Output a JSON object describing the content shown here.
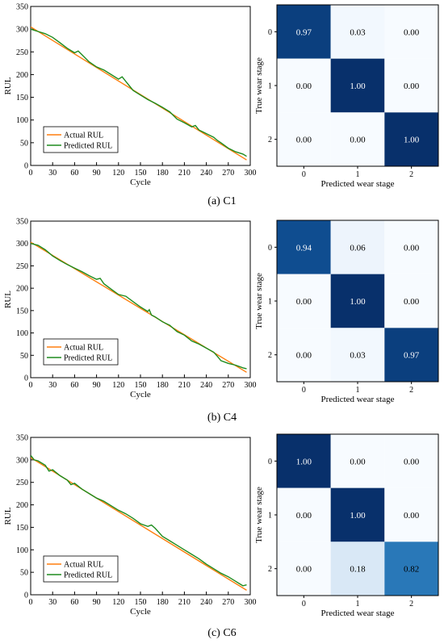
{
  "panels": [
    {
      "caption_letter": "(a)",
      "caption_text": " C1",
      "line": {
        "xlabel": "Cycle",
        "ylabel": "RUL",
        "xlim": [
          0,
          300
        ],
        "ylim": [
          0,
          350
        ],
        "xticks": [
          0,
          30,
          60,
          90,
          120,
          150,
          180,
          210,
          240,
          270,
          300
        ],
        "yticks": [
          0,
          50,
          100,
          150,
          200,
          250,
          300,
          350
        ],
        "legend": [
          "Actual RUL",
          "Predicted RUL"
        ]
      },
      "cm": {
        "xlabel": "Predicted wear stage",
        "ylabel": "True  wear stage",
        "classes": [
          "0",
          "1",
          "2"
        ],
        "matrix": [
          [
            "0.97",
            "0.03",
            "0.00"
          ],
          [
            "0.00",
            "1.00",
            "0.00"
          ],
          [
            "0.00",
            "0.00",
            "1.00"
          ]
        ]
      }
    },
    {
      "caption_letter": "(b)",
      "caption_text": " C4",
      "line": {
        "xlabel": "Cycle",
        "ylabel": "RUL",
        "xlim": [
          0,
          300
        ],
        "ylim": [
          0,
          350
        ],
        "xticks": [
          0,
          30,
          60,
          90,
          120,
          150,
          180,
          210,
          240,
          270,
          300
        ],
        "yticks": [
          0,
          50,
          100,
          150,
          200,
          250,
          300,
          350
        ],
        "legend": [
          "Actual RUL",
          "Predicted RUL"
        ]
      },
      "cm": {
        "xlabel": "Predicted wear stage",
        "ylabel": "True  wear stage",
        "classes": [
          "0",
          "1",
          "2"
        ],
        "matrix": [
          [
            "0.94",
            "0.06",
            "0.00"
          ],
          [
            "0.00",
            "1.00",
            "0.00"
          ],
          [
            "0.00",
            "0.03",
            "0.97"
          ]
        ]
      }
    },
    {
      "caption_letter": "(c)",
      "caption_text": " C6",
      "line": {
        "xlabel": "Cycle",
        "ylabel": "RUL",
        "xlim": [
          0,
          300
        ],
        "ylim": [
          0,
          350
        ],
        "xticks": [
          0,
          30,
          60,
          90,
          120,
          150,
          180,
          210,
          240,
          270,
          300
        ],
        "yticks": [
          0,
          50,
          100,
          150,
          200,
          250,
          300,
          350
        ],
        "legend": [
          "Actual RUL",
          "Predicted RUL"
        ]
      },
      "cm": {
        "xlabel": "Predicted wear stage",
        "ylabel": "True  wear stage",
        "classes": [
          "0",
          "1",
          "2"
        ],
        "matrix": [
          [
            "1.00",
            "0.00",
            "0.00"
          ],
          [
            "0.00",
            "1.00",
            "0.00"
          ],
          [
            "0.00",
            "0.18",
            "0.82"
          ]
        ]
      }
    }
  ],
  "colors": {
    "actual": "#ff7f0e",
    "predicted": "#1e8c1e",
    "cm_low": "#f7fbff",
    "cm_high": "#08306b"
  },
  "chart_data": [
    {
      "type": "line",
      "title": "",
      "xlabel": "Cycle",
      "ylabel": "RUL",
      "xlim": [
        0,
        300
      ],
      "ylim": [
        0,
        350
      ],
      "grid": false,
      "legend_position": "lower-left",
      "series": [
        {
          "name": "Actual RUL",
          "x": [
            0,
            295
          ],
          "y": [
            305,
            12
          ]
        },
        {
          "name": "Predicted RUL",
          "x": [
            0,
            10,
            20,
            30,
            40,
            50,
            60,
            65,
            70,
            80,
            90,
            100,
            110,
            120,
            125,
            130,
            135,
            140,
            150,
            160,
            170,
            180,
            190,
            200,
            210,
            220,
            225,
            230,
            240,
            250,
            255,
            260,
            270,
            280,
            290,
            295
          ],
          "y": [
            300,
            295,
            290,
            282,
            270,
            258,
            248,
            252,
            244,
            228,
            217,
            210,
            200,
            190,
            195,
            185,
            175,
            165,
            155,
            145,
            137,
            128,
            118,
            102,
            94,
            85,
            88,
            78,
            70,
            62,
            55,
            50,
            38,
            30,
            25,
            20
          ]
        }
      ]
    },
    {
      "type": "heatmap",
      "title": "",
      "xlabel": "Predicted wear stage",
      "ylabel": "True  wear stage",
      "x": [
        "0",
        "1",
        "2"
      ],
      "y": [
        "0",
        "1",
        "2"
      ],
      "values": [
        [
          0.97,
          0.03,
          0.0
        ],
        [
          0.0,
          1.0,
          0.0
        ],
        [
          0.0,
          0.0,
          1.0
        ]
      ]
    },
    {
      "type": "line",
      "title": "",
      "xlabel": "Cycle",
      "ylabel": "RUL",
      "xlim": [
        0,
        300
      ],
      "ylim": [
        0,
        350
      ],
      "grid": false,
      "legend_position": "lower-left",
      "series": [
        {
          "name": "Actual RUL",
          "x": [
            0,
            295
          ],
          "y": [
            303,
            12
          ]
        },
        {
          "name": "Predicted RUL",
          "x": [
            0,
            10,
            20,
            30,
            40,
            50,
            60,
            70,
            80,
            90,
            95,
            100,
            110,
            120,
            130,
            140,
            150,
            160,
            162,
            165,
            170,
            180,
            190,
            200,
            210,
            220,
            230,
            240,
            250,
            255,
            260,
            270,
            280,
            290,
            295
          ],
          "y": [
            300,
            296,
            286,
            272,
            262,
            253,
            245,
            237,
            228,
            220,
            222,
            210,
            198,
            186,
            182,
            170,
            158,
            148,
            152,
            140,
            136,
            125,
            117,
            103,
            95,
            82,
            75,
            66,
            57,
            48,
            38,
            32,
            28,
            22,
            20
          ]
        }
      ]
    },
    {
      "type": "heatmap",
      "title": "",
      "xlabel": "Predicted wear stage",
      "ylabel": "True  wear stage",
      "x": [
        "0",
        "1",
        "2"
      ],
      "y": [
        "0",
        "1",
        "2"
      ],
      "values": [
        [
          0.94,
          0.06,
          0.0
        ],
        [
          0.0,
          1.0,
          0.0
        ],
        [
          0.0,
          0.03,
          0.97
        ]
      ]
    },
    {
      "type": "line",
      "title": "",
      "xlabel": "Cycle",
      "ylabel": "RUL",
      "xlim": [
        0,
        300
      ],
      "ylim": [
        0,
        350
      ],
      "grid": false,
      "legend_position": "lower-left",
      "series": [
        {
          "name": "Actual RUL",
          "x": [
            0,
            295
          ],
          "y": [
            305,
            10
          ]
        },
        {
          "name": "Predicted RUL",
          "x": [
            0,
            5,
            10,
            20,
            25,
            30,
            40,
            50,
            55,
            60,
            70,
            80,
            90,
            100,
            110,
            120,
            130,
            140,
            150,
            160,
            165,
            170,
            180,
            190,
            200,
            210,
            220,
            230,
            240,
            250,
            260,
            270,
            280,
            285,
            290,
            295
          ],
          "y": [
            310,
            300,
            298,
            288,
            275,
            278,
            265,
            255,
            245,
            248,
            235,
            225,
            215,
            208,
            198,
            188,
            180,
            170,
            158,
            152,
            155,
            148,
            130,
            120,
            110,
            100,
            90,
            80,
            68,
            58,
            48,
            40,
            30,
            25,
            20,
            22
          ]
        }
      ]
    },
    {
      "type": "heatmap",
      "title": "",
      "xlabel": "Predicted wear stage",
      "ylabel": "True  wear stage",
      "x": [
        "0",
        "1",
        "2"
      ],
      "y": [
        "0",
        "1",
        "2"
      ],
      "values": [
        [
          1.0,
          0.0,
          0.0
        ],
        [
          0.0,
          1.0,
          0.0
        ],
        [
          0.0,
          0.18,
          0.82
        ]
      ]
    }
  ]
}
